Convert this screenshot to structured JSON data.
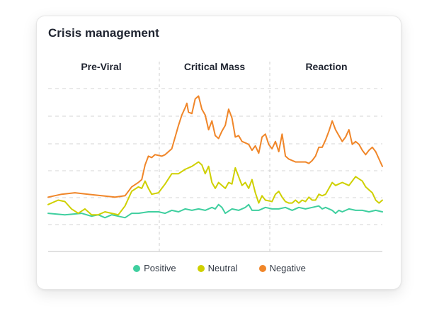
{
  "chart_data": {
    "type": "line",
    "title": "Crisis management",
    "phases": [
      "Pre-Viral",
      "Critical Mass",
      "Reaction"
    ],
    "x_range": [
      0,
      100
    ],
    "y_range": [
      0,
      100
    ],
    "grid": "horizontal-dashed",
    "legend_position": "bottom",
    "series": [
      {
        "name": "Positive",
        "color": "#3fcf9f",
        "points": [
          [
            0,
            13
          ],
          [
            5,
            12
          ],
          [
            10,
            13
          ],
          [
            13,
            11
          ],
          [
            15,
            12
          ],
          [
            17,
            10
          ],
          [
            19,
            12
          ],
          [
            21,
            11
          ],
          [
            23,
            10
          ],
          [
            25,
            13
          ],
          [
            27,
            13
          ],
          [
            30,
            14
          ],
          [
            33,
            14
          ],
          [
            35,
            13
          ],
          [
            37,
            15
          ],
          [
            39,
            14
          ],
          [
            41,
            16
          ],
          [
            43,
            15
          ],
          [
            45,
            16
          ],
          [
            47,
            15
          ],
          [
            49,
            17
          ],
          [
            50,
            16
          ],
          [
            51,
            19
          ],
          [
            52,
            17
          ],
          [
            53,
            13
          ],
          [
            55,
            16
          ],
          [
            57,
            15
          ],
          [
            59,
            17
          ],
          [
            60,
            19
          ],
          [
            61,
            15
          ],
          [
            63,
            15
          ],
          [
            65,
            17
          ],
          [
            67,
            16
          ],
          [
            69,
            16
          ],
          [
            71,
            17
          ],
          [
            73,
            15
          ],
          [
            75,
            17
          ],
          [
            77,
            16
          ],
          [
            79,
            17
          ],
          [
            81,
            18
          ],
          [
            82,
            16
          ],
          [
            83,
            17
          ],
          [
            85,
            15
          ],
          [
            86,
            13
          ],
          [
            87,
            15
          ],
          [
            88,
            14
          ],
          [
            90,
            16
          ],
          [
            92,
            15
          ],
          [
            94,
            15
          ],
          [
            96,
            14
          ],
          [
            98,
            15
          ],
          [
            100,
            14
          ]
        ]
      },
      {
        "name": "Neutral",
        "color": "#cfd000",
        "points": [
          [
            0,
            19
          ],
          [
            3,
            22
          ],
          [
            5,
            21
          ],
          [
            7,
            16
          ],
          [
            9,
            13
          ],
          [
            11,
            16
          ],
          [
            13,
            12
          ],
          [
            15,
            12
          ],
          [
            17,
            14
          ],
          [
            19,
            13
          ],
          [
            21,
            12
          ],
          [
            23,
            18
          ],
          [
            25,
            28
          ],
          [
            27,
            31
          ],
          [
            28,
            30
          ],
          [
            29,
            35
          ],
          [
            30,
            30
          ],
          [
            31,
            26
          ],
          [
            33,
            27
          ],
          [
            35,
            33
          ],
          [
            37,
            40
          ],
          [
            39,
            40
          ],
          [
            41,
            43
          ],
          [
            43,
            45
          ],
          [
            45,
            48
          ],
          [
            46,
            46
          ],
          [
            47,
            40
          ],
          [
            48,
            45
          ],
          [
            49,
            34
          ],
          [
            50,
            30
          ],
          [
            51,
            34
          ],
          [
            53,
            30
          ],
          [
            54,
            34
          ],
          [
            55,
            33
          ],
          [
            56,
            44
          ],
          [
            57,
            38
          ],
          [
            58,
            32
          ],
          [
            59,
            34
          ],
          [
            60,
            30
          ],
          [
            61,
            36
          ],
          [
            62,
            27
          ],
          [
            63,
            20
          ],
          [
            64,
            25
          ],
          [
            65,
            22
          ],
          [
            67,
            21
          ],
          [
            68,
            26
          ],
          [
            69,
            28
          ],
          [
            70,
            24
          ],
          [
            71,
            21
          ],
          [
            72,
            20
          ],
          [
            73,
            20
          ],
          [
            74,
            22
          ],
          [
            75,
            20
          ],
          [
            76,
            22
          ],
          [
            77,
            21
          ],
          [
            78,
            24
          ],
          [
            79,
            22
          ],
          [
            80,
            22
          ],
          [
            81,
            26
          ],
          [
            82,
            25
          ],
          [
            83,
            26
          ],
          [
            85,
            34
          ],
          [
            86,
            32
          ],
          [
            87,
            33
          ],
          [
            88,
            34
          ],
          [
            89,
            33
          ],
          [
            90,
            32
          ],
          [
            92,
            38
          ],
          [
            94,
            35
          ],
          [
            95,
            31
          ],
          [
            96,
            29
          ],
          [
            97,
            27
          ],
          [
            98,
            22
          ],
          [
            99,
            20
          ],
          [
            100,
            22
          ]
        ]
      },
      {
        "name": "Negative",
        "color": "#f08629",
        "points": [
          [
            0,
            24
          ],
          [
            4,
            26
          ],
          [
            8,
            27
          ],
          [
            12,
            26
          ],
          [
            16,
            25
          ],
          [
            20,
            24
          ],
          [
            23,
            25
          ],
          [
            25,
            31
          ],
          [
            27,
            34
          ],
          [
            28,
            36
          ],
          [
            29,
            46
          ],
          [
            30,
            52
          ],
          [
            31,
            51
          ],
          [
            32,
            53
          ],
          [
            34,
            52
          ],
          [
            35,
            53
          ],
          [
            37,
            57
          ],
          [
            38,
            65
          ],
          [
            39,
            73
          ],
          [
            40,
            80
          ],
          [
            41,
            85
          ],
          [
            41.5,
            88
          ],
          [
            42,
            82
          ],
          [
            43,
            81
          ],
          [
            44,
            91
          ],
          [
            45,
            93
          ],
          [
            46,
            84
          ],
          [
            47,
            80
          ],
          [
            48,
            70
          ],
          [
            49,
            76
          ],
          [
            50,
            66
          ],
          [
            51,
            64
          ],
          [
            52,
            69
          ],
          [
            53,
            73
          ],
          [
            54,
            84
          ],
          [
            55,
            78
          ],
          [
            56,
            65
          ],
          [
            57,
            66
          ],
          [
            58,
            62
          ],
          [
            59,
            61
          ],
          [
            60,
            60
          ],
          [
            61,
            56
          ],
          [
            62,
            59
          ],
          [
            63,
            54
          ],
          [
            64,
            65
          ],
          [
            65,
            67
          ],
          [
            66,
            60
          ],
          [
            67,
            57
          ],
          [
            68,
            62
          ],
          [
            69,
            55
          ],
          [
            70,
            67
          ],
          [
            71,
            52
          ],
          [
            72,
            50
          ],
          [
            73,
            49
          ],
          [
            74,
            48
          ],
          [
            75,
            48
          ],
          [
            76,
            48
          ],
          [
            77,
            48
          ],
          [
            78,
            47
          ],
          [
            79,
            49
          ],
          [
            80,
            52
          ],
          [
            81,
            58
          ],
          [
            82,
            58
          ],
          [
            83,
            63
          ],
          [
            84,
            69
          ],
          [
            85,
            76
          ],
          [
            86,
            70
          ],
          [
            87,
            66
          ],
          [
            88,
            62
          ],
          [
            89,
            65
          ],
          [
            90,
            70
          ],
          [
            91,
            60
          ],
          [
            92,
            62
          ],
          [
            93,
            60
          ],
          [
            94,
            56
          ],
          [
            95,
            53
          ],
          [
            96,
            56
          ],
          [
            97,
            58
          ],
          [
            98,
            55
          ],
          [
            99,
            50
          ],
          [
            100,
            45
          ]
        ]
      }
    ]
  }
}
